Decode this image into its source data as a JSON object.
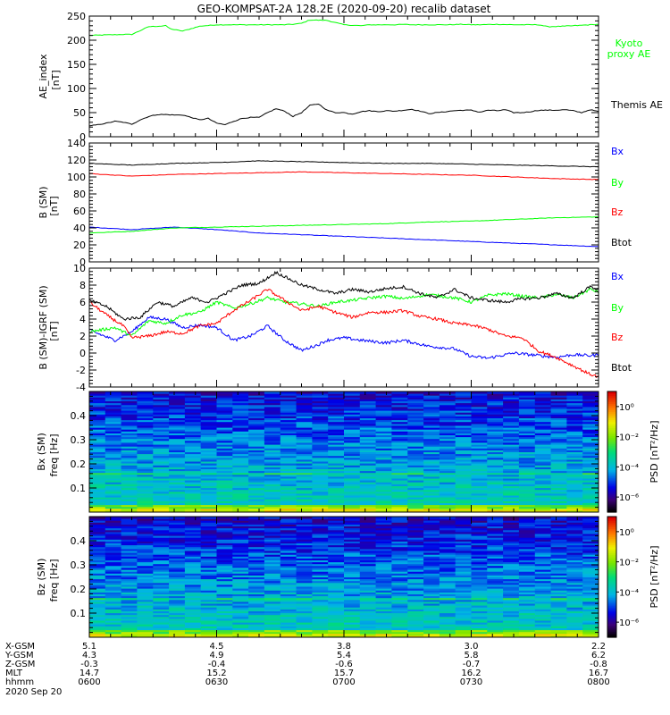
{
  "title": "GEO-KOMPSAT-2A 128.2E (2020-09-20) recalib dataset",
  "chart_data": [
    {
      "type": "line",
      "panel": "ae",
      "ylabel": "AE_index",
      "yunit": "[nT]",
      "ylim": [
        0,
        250
      ],
      "yticks": [
        "0",
        "50",
        "100",
        "150",
        "200",
        "250"
      ],
      "series": [
        {
          "name": "Kyoto proxy AE",
          "legend_lines": [
            "Kyoto",
            "proxy AE"
          ],
          "color": "#00ff00",
          "x": [
            0,
            4,
            8,
            10,
            12,
            14,
            18,
            19,
            20,
            22,
            26,
            30,
            33,
            40,
            46,
            48,
            50,
            52,
            56,
            60,
            64,
            66,
            70,
            72,
            74,
            76,
            80,
            84,
            88,
            90,
            92,
            96,
            100,
            106,
            108,
            112,
            116,
            118,
            120
          ],
          "values": [
            210,
            211,
            212,
            212,
            220,
            228,
            230,
            224,
            222,
            219,
            229,
            232,
            232,
            232,
            232,
            233,
            235,
            242,
            241,
            232,
            230,
            232,
            232,
            232,
            233,
            232,
            232,
            232,
            233,
            232,
            232,
            233,
            232,
            232,
            228,
            229,
            231,
            232,
            233
          ]
        },
        {
          "name": "Themis AE",
          "legend_lines": [
            "Themis AE"
          ],
          "color": "#000000",
          "x": [
            0,
            2,
            4,
            6,
            8,
            10,
            12,
            14,
            16,
            18,
            20,
            22,
            24,
            26,
            28,
            30,
            32,
            34,
            36,
            38,
            40,
            42,
            44,
            46,
            48,
            50,
            52,
            54,
            56,
            58,
            60,
            62,
            64,
            66,
            68,
            70,
            72,
            74,
            76,
            78,
            80,
            82,
            84,
            86,
            88,
            90,
            92,
            94,
            96,
            98,
            100,
            102,
            104,
            106,
            108,
            110,
            112,
            114,
            116,
            118,
            120
          ],
          "values": [
            22,
            25,
            28,
            32,
            30,
            26,
            35,
            42,
            46,
            46,
            45,
            45,
            40,
            35,
            38,
            28,
            25,
            32,
            38,
            40,
            40,
            50,
            58,
            53,
            42,
            50,
            65,
            68,
            55,
            50,
            50,
            47,
            52,
            54,
            52,
            54,
            53,
            55,
            57,
            53,
            48,
            50,
            52,
            54,
            55,
            55,
            51,
            55,
            54,
            56,
            50,
            50,
            52,
            55,
            55,
            55,
            56,
            54,
            50,
            56,
            52
          ]
        }
      ]
    },
    {
      "type": "line",
      "panel": "b_sm",
      "ylabel": "B (SM)",
      "yunit": "[nT]",
      "ylim": [
        0,
        140
      ],
      "yticks": [
        "0",
        "20",
        "40",
        "60",
        "80",
        "100",
        "120",
        "140"
      ],
      "series": [
        {
          "name": "Bx",
          "color": "#0000ff",
          "x": [
            0,
            10,
            20,
            30,
            40,
            50,
            60,
            70,
            80,
            90,
            100,
            110,
            120
          ],
          "values": [
            41,
            38,
            41,
            38,
            34,
            32,
            30,
            28,
            26,
            24,
            22,
            20,
            18
          ]
        },
        {
          "name": "By",
          "color": "#00ff00",
          "x": [
            0,
            10,
            20,
            30,
            40,
            50,
            60,
            70,
            80,
            90,
            100,
            110,
            120
          ],
          "values": [
            34,
            36,
            40,
            41,
            42,
            43,
            44,
            45,
            47,
            48,
            50,
            52,
            53
          ]
        },
        {
          "name": "Bz",
          "color": "#ff0000",
          "x": [
            0,
            10,
            20,
            30,
            40,
            50,
            60,
            70,
            80,
            90,
            100,
            110,
            120
          ],
          "values": [
            104,
            101,
            103,
            104,
            105,
            106,
            105,
            104,
            103,
            102,
            100,
            98,
            97
          ]
        },
        {
          "name": "Btot",
          "color": "#000000",
          "x": [
            0,
            10,
            20,
            30,
            40,
            50,
            60,
            70,
            80,
            90,
            100,
            110,
            120
          ],
          "values": [
            116,
            114,
            116,
            117,
            119,
            118,
            117,
            116,
            116,
            115,
            114,
            113,
            112
          ]
        }
      ]
    },
    {
      "type": "line",
      "panel": "b_igrf",
      "ylabel": "B (SM)-IGRF (SM)",
      "yunit": "[nT]",
      "ylim": [
        -4,
        10
      ],
      "yticks": [
        "-4",
        "-2",
        "0",
        "2",
        "4",
        "6",
        "8",
        "10"
      ],
      "series": [
        {
          "name": "Bx",
          "color": "#0000ff",
          "x": [
            0,
            6,
            10,
            14,
            18,
            22,
            26,
            30,
            34,
            38,
            42,
            46,
            50,
            54,
            56,
            60,
            64,
            70,
            74,
            80,
            86,
            90,
            94,
            96,
            100,
            106,
            110,
            114,
            118,
            120
          ],
          "values": [
            2.7,
            1.5,
            2.5,
            4.2,
            4.0,
            3.0,
            3.3,
            3.0,
            1.5,
            2.0,
            3.2,
            1.5,
            0.3,
            1.0,
            1.5,
            1.8,
            1.5,
            1.2,
            1.5,
            0.8,
            0.5,
            -0.4,
            -0.6,
            -0.4,
            0,
            -0.3,
            -0.5,
            -0.2,
            -0.3,
            -0.2
          ]
        },
        {
          "name": "By",
          "color": "#00ff00",
          "x": [
            0,
            6,
            10,
            14,
            18,
            22,
            26,
            30,
            34,
            38,
            42,
            46,
            50,
            54,
            58,
            62,
            66,
            70,
            74,
            80,
            86,
            90,
            94,
            98,
            102,
            106,
            110,
            114,
            118,
            120
          ],
          "values": [
            2.5,
            3.0,
            2.0,
            3.8,
            3.5,
            4.5,
            4.8,
            6.0,
            5.3,
            5.8,
            6.5,
            6.0,
            5.8,
            5.5,
            6.0,
            6.2,
            6.5,
            6.7,
            6.4,
            6.9,
            6.5,
            6.0,
            6.8,
            7.0,
            6.7,
            6.5,
            6.9,
            6.5,
            7.5,
            7.2
          ]
        },
        {
          "name": "Bz",
          "color": "#ff0000",
          "x": [
            0,
            4,
            8,
            10,
            14,
            18,
            22,
            26,
            30,
            34,
            38,
            42,
            46,
            50,
            54,
            58,
            62,
            66,
            70,
            74,
            78,
            82,
            86,
            90,
            94,
            98,
            102,
            106,
            110,
            114,
            118,
            120
          ],
          "values": [
            6.0,
            4.5,
            3.2,
            1.8,
            2.0,
            2.5,
            2.3,
            3.2,
            3.5,
            5.0,
            6.2,
            7.5,
            6.2,
            5.0,
            5.5,
            4.8,
            4.2,
            4.8,
            4.8,
            5.0,
            4.3,
            4.0,
            3.5,
            3.3,
            2.8,
            2.0,
            1.8,
            0.2,
            -0.5,
            -1.5,
            -2.5,
            -2.8
          ]
        },
        {
          "name": "Btot",
          "color": "#000000",
          "x": [
            0,
            4,
            8,
            12,
            16,
            20,
            24,
            28,
            32,
            36,
            40,
            44,
            46,
            50,
            54,
            58,
            62,
            66,
            70,
            74,
            78,
            82,
            86,
            90,
            94,
            98,
            102,
            106,
            110,
            114,
            118,
            120
          ],
          "values": [
            6.2,
            5.5,
            4.0,
            4.2,
            6.0,
            5.5,
            6.5,
            6.0,
            7.0,
            8.0,
            8.2,
            9.5,
            9.0,
            8.0,
            7.5,
            7.0,
            7.5,
            7.2,
            7.6,
            7.8,
            7.0,
            6.5,
            7.5,
            6.5,
            6.2,
            6.0,
            6.4,
            6.5,
            7.0,
            6.5,
            7.8,
            7.5
          ]
        }
      ]
    },
    {
      "type": "heatmap",
      "panel": "bx_spec",
      "ylabel": "Bx (SM)",
      "ylabel2": "freq [Hz]",
      "yticks": [
        "0.1",
        "0.2",
        "0.3",
        "0.4"
      ],
      "ylim": [
        0,
        0.5
      ],
      "colorbar_label": "PSD [nT²/Hz]",
      "colorbar_ticks": [
        "10⁰",
        "10⁻²",
        "10⁻⁴",
        "10⁻⁶"
      ],
      "colorbar_exponents": [
        0,
        -2,
        -4,
        -6
      ],
      "colorbar_range": [
        -7,
        1
      ]
    },
    {
      "type": "heatmap",
      "panel": "bz_spec",
      "ylabel": "Bz (SM)",
      "ylabel2": "freq [Hz]",
      "yticks": [
        "0.1",
        "0.2",
        "0.3",
        "0.4"
      ],
      "ylim": [
        0,
        0.5
      ],
      "colorbar_label": "PSD [nT²/Hz]",
      "colorbar_ticks": [
        "10⁰",
        "10⁻²",
        "10⁻⁴",
        "10⁻⁶"
      ],
      "colorbar_exponents": [
        0,
        -2,
        -4,
        -6
      ],
      "colorbar_range": [
        -7,
        1
      ]
    }
  ],
  "x_axis": {
    "x_minutes": [
      0,
      30,
      60,
      90,
      120
    ],
    "rows": [
      {
        "label": "X-GSM",
        "values": [
          "5.1",
          "4.5",
          "3.8",
          "3.0",
          "2.2"
        ]
      },
      {
        "label": "Y-GSM",
        "values": [
          "4.3",
          "4.9",
          "5.4",
          "5.8",
          "6.2"
        ]
      },
      {
        "label": "Z-GSM",
        "values": [
          "-0.3",
          "-0.4",
          "-0.6",
          "-0.7",
          "-0.8"
        ]
      },
      {
        "label": "MLT",
        "values": [
          "14.7",
          "15.2",
          "15.7",
          "16.2",
          "16.7"
        ]
      },
      {
        "label": "hhmm",
        "values": [
          "0600",
          "0630",
          "0700",
          "0730",
          "0800"
        ]
      }
    ],
    "date": "2020 Sep 20"
  }
}
